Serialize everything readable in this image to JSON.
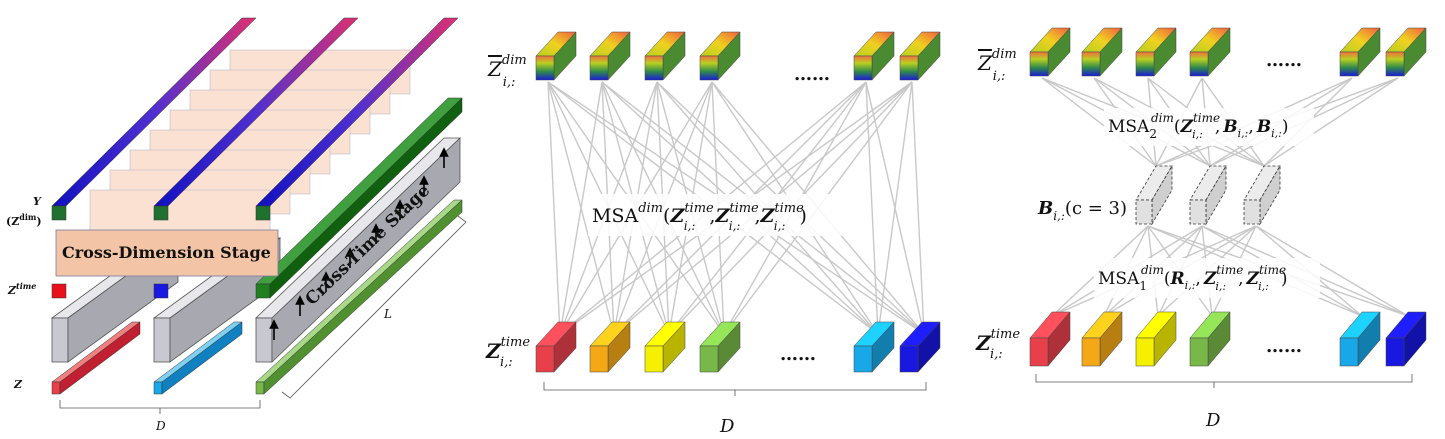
{
  "left_panel": {
    "y_label": "Y",
    "y_sub_label": "(Z",
    "y_sub_sup": "dim",
    "y_sub_close": ")",
    "ztime_label": "Z",
    "ztime_sup": "time",
    "z_label": "Z",
    "cross_dimension_stage": "Cross-Dimension Stage",
    "cross_time_stage": "Cross-Time Stage",
    "l_label": "L",
    "d_label": "D"
  },
  "middle_panel": {
    "top_label": "Z",
    "top_sup": "dim",
    "top_sub": "i,:",
    "bottom_label": "Z",
    "bottom_sup": "time",
    "bottom_sub": "i,:",
    "ellipsis": "……",
    "msa_text": "MSA",
    "msa_sup": "dim",
    "msa_args": [
      "Z",
      "Z",
      "Z"
    ],
    "msa_arg_sup": "time",
    "msa_arg_sub": "i,:",
    "d_label": "D"
  },
  "right_panel": {
    "top_label": "Z",
    "top_sup": "dim",
    "top_sub": "i,:",
    "bottom_label": "Z",
    "bottom_sup": "time",
    "bottom_sub": "i,:",
    "ellipsis": "……",
    "msa2_text": "MSA",
    "msa2_sub": "2",
    "msa2_sup": "dim",
    "msa2_arg1": "Z",
    "msa2_arg1_sup": "time",
    "msa2_arg1_sub": "i,:",
    "msa2_arg2": "B",
    "msa2_arg2_sub": "i,:",
    "msa2_arg3": "B",
    "msa2_arg3_sub": "i,:",
    "msa1_text": "MSA",
    "msa1_sub": "1",
    "msa1_sup": "dim",
    "msa1_arg1": "R",
    "msa1_arg1_sub": "i,:",
    "msa1_arg2": "Z",
    "msa1_arg2_sup": "time",
    "msa1_arg2_sub": "i,:",
    "msa1_arg3": "Z",
    "msa1_arg3_sup": "time",
    "msa1_arg3_sub": "i,:",
    "router_label": "B",
    "router_sub": "i,:",
    "router_cond": "(c = 3)",
    "d_label": "D"
  },
  "colors": {
    "red": "#e8404a",
    "orange": "#f4a818",
    "yellow": "#f5f000",
    "green": "#78b848",
    "cyan": "#18a8e8",
    "blue": "#1818e0",
    "connector": "#c8c8c8",
    "router_fill": "#e0e0e0",
    "stage_fill": "#f6c9ae",
    "time_block": "#c8c8d0"
  }
}
